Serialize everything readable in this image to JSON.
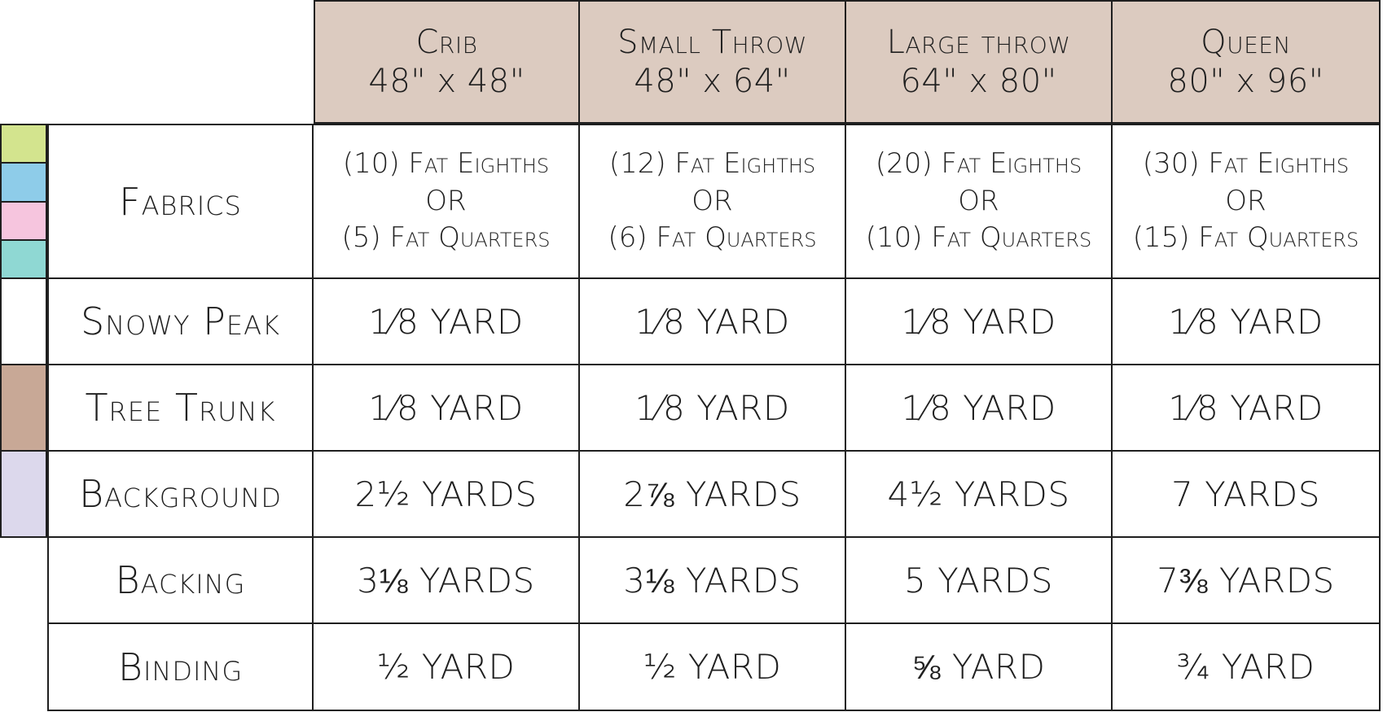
{
  "table": {
    "columns": [
      {
        "name": "Crib",
        "dims": "48\" x 48\""
      },
      {
        "name": "Small Throw",
        "dims": "48\" x 64\""
      },
      {
        "name": "Large throw",
        "dims": "64\" x 80\""
      },
      {
        "name": "Queen",
        "dims": "80\" x 96\""
      }
    ],
    "fabrics": {
      "label": "Fabrics",
      "swatch_colors": [
        "#d3e48e",
        "#8ecce9",
        "#f6c5de",
        "#8fd8d3"
      ],
      "cells": [
        {
          "line1": "(10) Fat Eighths",
          "line2": "OR",
          "line3": "(5) Fat Quarters"
        },
        {
          "line1": "(12) Fat Eighths",
          "line2": "OR",
          "line3": "(6) Fat Quarters"
        },
        {
          "line1": "(20) Fat Eighths",
          "line2": "OR",
          "line3": "(10) Fat Quarters"
        },
        {
          "line1": "(30) Fat Eighths",
          "line2": "OR",
          "line3": "(15) Fat Quarters"
        }
      ]
    },
    "rows": [
      {
        "label": "Snowy Peak",
        "swatch": "#ffffff",
        "values": [
          "1⁄8 YARD",
          "1⁄8 YARD",
          "1⁄8 YARD",
          "1⁄8 YARD"
        ]
      },
      {
        "label": "Tree Trunk",
        "swatch": "#c8a896",
        "values": [
          "1⁄8 YARD",
          "1⁄8 YARD",
          "1⁄8 YARD",
          "1⁄8 YARD"
        ]
      },
      {
        "label": "Background",
        "swatch": "#dcd8ec",
        "values": [
          "2½ YARDS",
          "2⅞ YARDS",
          "4½ YARDS",
          "7 YARDS"
        ]
      },
      {
        "label": "Backing",
        "values": [
          "3⅛ YARDS",
          "3⅛ YARDS",
          "5 YARDS",
          "7⅜ YARDS"
        ]
      },
      {
        "label": "Binding",
        "values": [
          "½ YARD",
          "½ YARD",
          "⅝ YARD",
          "¾ YARD"
        ]
      }
    ]
  },
  "colors": {
    "header_bg": "#dccbc0",
    "border": "#1f1f1f"
  }
}
